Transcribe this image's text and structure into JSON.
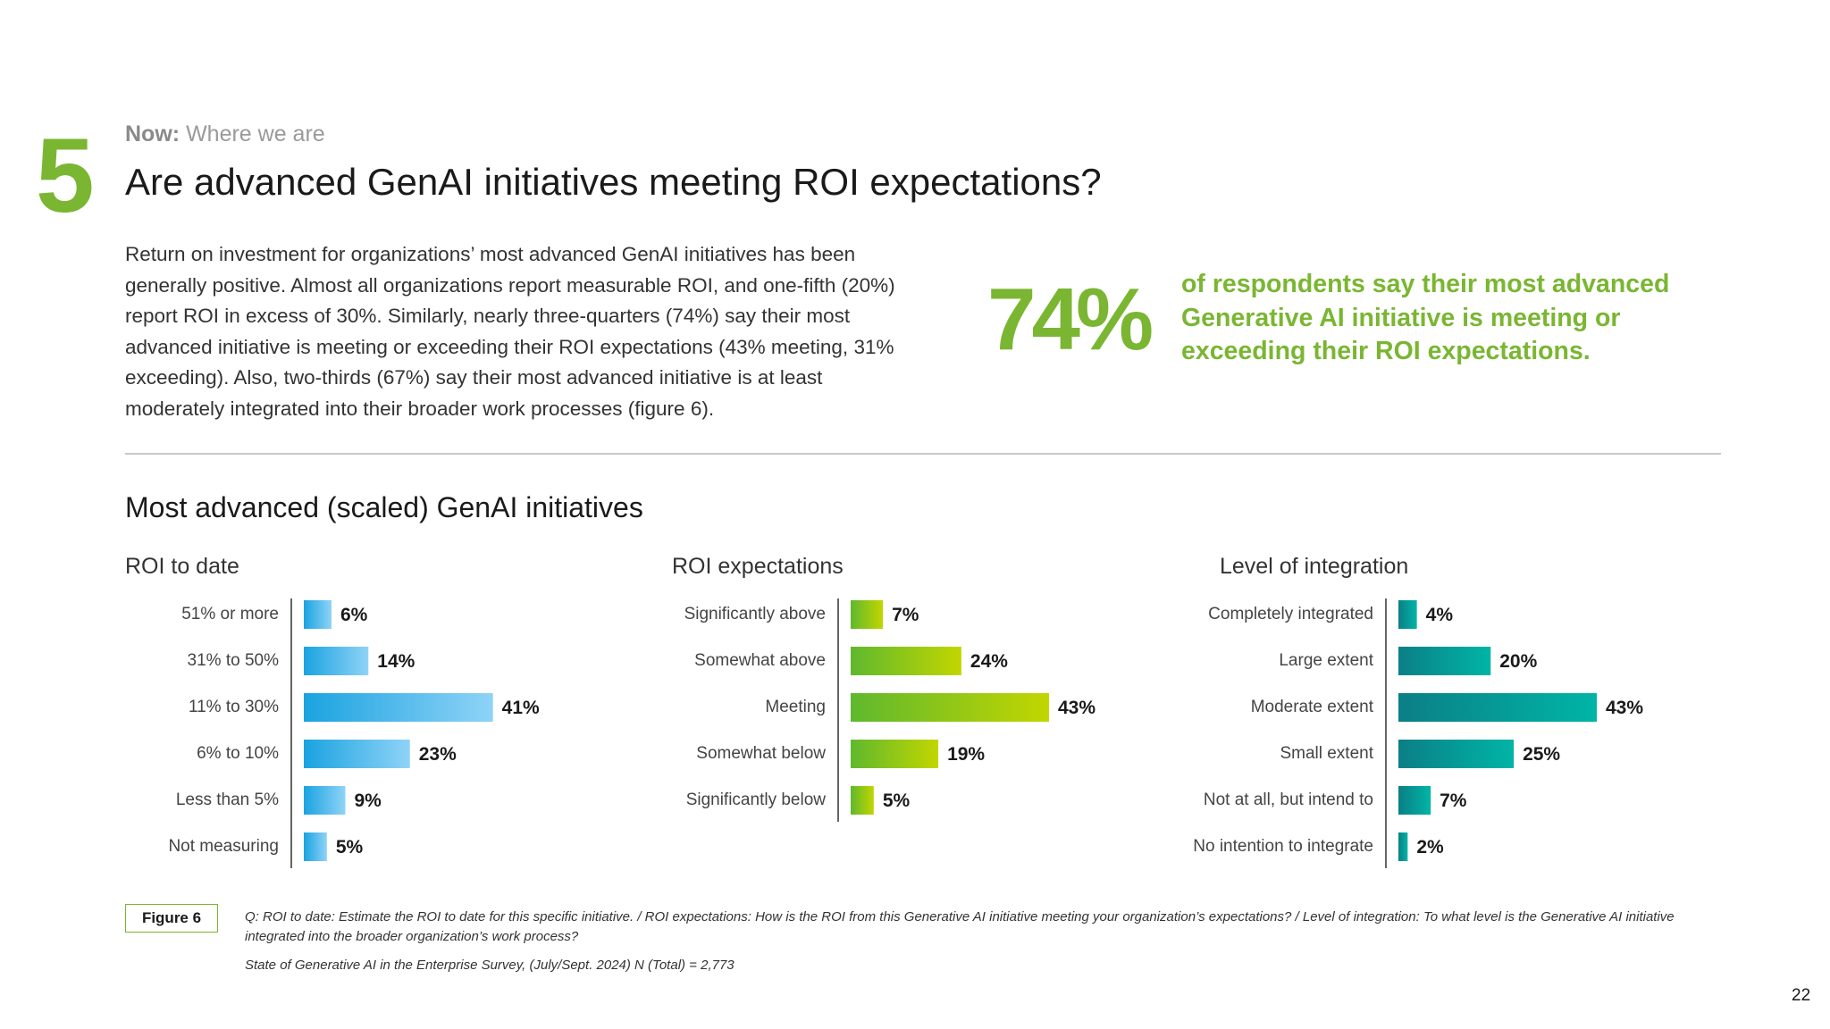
{
  "section_number": "5",
  "kicker": {
    "bold": "Now:",
    "rest": "Where we are"
  },
  "title": "Are advanced GenAI initiatives meeting ROI expectations?",
  "body": "Return on investment for organizations’ most advanced GenAI initiatives has been generally positive. Almost all organizations report measurable ROI, and one-fifth (20%) report ROI in excess of 30%. Similarly, nearly three-quarters (74%) say their most advanced initiative is meeting or exceeding their ROI expectations (43% meeting, 31% exceeding). Also, two-thirds (67%) say their most advanced initiative is at least moderately integrated into their broader work processes (figure 6).",
  "stat": {
    "value": "74%",
    "text": "of respondents say their most advanced Generative AI initiative is meeting or exceeding their ROI expectations.",
    "color": "#7ab632"
  },
  "charts_title": "Most advanced (scaled) GenAI initiatives",
  "chart_data": [
    {
      "type": "bar",
      "orientation": "horizontal",
      "title": "ROI to date",
      "categories": [
        "51% or more",
        "31% to 50%",
        "11% to 30%",
        "6% to 10%",
        "Less than 5%",
        "Not measuring"
      ],
      "values": [
        6,
        14,
        41,
        23,
        9,
        5
      ],
      "labels": [
        "6%",
        "14%",
        "41%",
        "23%",
        "9%",
        "5%"
      ],
      "xlim": [
        0,
        43
      ],
      "colors": [
        "#1aa3e0",
        "#8fd3f7"
      ]
    },
    {
      "type": "bar",
      "orientation": "horizontal",
      "title": "ROI expectations",
      "categories": [
        "Significantly above",
        "Somewhat above",
        "Meeting",
        "Somewhat below",
        "Significantly below"
      ],
      "values": [
        7,
        24,
        43,
        19,
        5
      ],
      "labels": [
        "7%",
        "24%",
        "43%",
        "19%",
        "5%"
      ],
      "xlim": [
        0,
        43
      ],
      "colors": [
        "#5fb82e",
        "#c2d600"
      ]
    },
    {
      "type": "bar",
      "orientation": "horizontal",
      "title": "Level of integration",
      "categories": [
        "Completely integrated",
        "Large extent",
        "Moderate extent",
        "Small extent",
        "Not at all, but intend to",
        "No intention to integrate"
      ],
      "values": [
        4,
        20,
        43,
        25,
        7,
        2
      ],
      "labels": [
        "4%",
        "20%",
        "43%",
        "25%",
        "7%",
        "2%"
      ],
      "xlim": [
        0,
        43
      ],
      "colors": [
        "#0b7f86",
        "#00b5a6"
      ]
    }
  ],
  "figure_label": "Figure 6",
  "footnote_q": "Q: ROI to date: Estimate the ROI to date for this specific initiative. / ROI expectations: How is the ROI from this Generative AI initiative meeting your organization’s expectations? / Level of integration: To what level is the Generative AI initiative integrated into the broader organization’s work process?",
  "footnote_source": "State of Generative AI in the Enterprise Survey, (July/Sept. 2024) N (Total) = 2,773",
  "page_number": "22"
}
